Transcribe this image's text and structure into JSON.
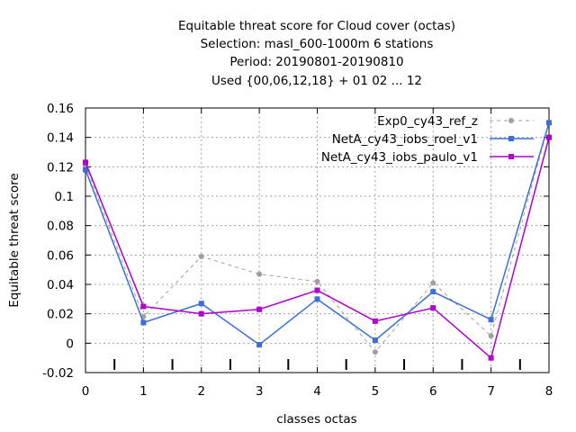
{
  "chart_data": {
    "type": "line",
    "title_lines": [
      "Equitable threat score  for Cloud cover (octas)",
      "Selection: masl_600-1000m      6 stations",
      "Period: 20190801-20190810",
      "Used {00,06,12,18} + 01 02 ... 12"
    ],
    "xlabel": "classes octas",
    "ylabel": "Equitable threat score",
    "xlim": [
      0,
      8
    ],
    "ylim": [
      -0.02,
      0.16
    ],
    "xticks": [
      "0",
      "1",
      "2",
      "3",
      "4",
      "5",
      "6",
      "7",
      "8"
    ],
    "yticks": [
      "-0.02",
      "0",
      "0.02",
      "0.04",
      "0.06",
      "0.08",
      "0.1",
      "0.12",
      "0.14",
      "0.16"
    ],
    "grid": true,
    "legend_position": "top-right",
    "x": [
      0,
      1,
      2,
      3,
      4,
      5,
      6,
      7,
      8
    ],
    "series": [
      {
        "name": "Exp0_cy43_ref_z",
        "values": [
          0.121,
          0.018,
          0.059,
          0.047,
          0.042,
          -0.006,
          0.041,
          0.005,
          0.15
        ],
        "color": "#a0a0a0",
        "dash": true,
        "marker": "circle"
      },
      {
        "name": "NetA_cy43_iobs_roel_v1",
        "values": [
          0.118,
          0.014,
          0.027,
          -0.001,
          0.03,
          0.002,
          0.035,
          0.016,
          0.15
        ],
        "color": "#3a6fd8",
        "dash": false,
        "marker": "square"
      },
      {
        "name": "NetA_cy43_iobs_paulo_v1",
        "values": [
          0.123,
          0.025,
          0.02,
          0.023,
          0.036,
          0.015,
          0.024,
          -0.01,
          0.14
        ],
        "color": "#b000d0",
        "dash": false,
        "marker": "square"
      }
    ]
  }
}
